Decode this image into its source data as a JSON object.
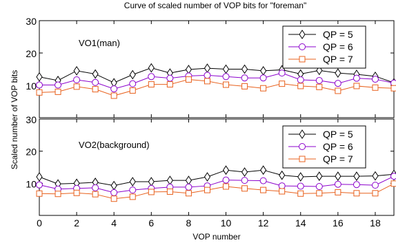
{
  "chart_data": {
    "type": "line",
    "title": "Curve of scaled number of VOP bits for \"foreman\"",
    "xlabel": "VOP number",
    "ylabel": "Scaled number of VOP bits",
    "x": [
      0,
      1,
      2,
      3,
      4,
      5,
      6,
      7,
      8,
      9,
      10,
      11,
      12,
      13,
      14,
      15,
      16,
      17,
      18,
      19
    ],
    "xlim": [
      0,
      19
    ],
    "xticks": [
      "0",
      "2",
      "4",
      "6",
      "8",
      "10",
      "12",
      "14",
      "16",
      "18"
    ],
    "grid": false,
    "legend_placement": "top-right",
    "panels": [
      {
        "label": "VO1(man)",
        "ylim": [
          0,
          30
        ],
        "yticks": [
          "10",
          "20",
          "30"
        ],
        "series": [
          {
            "name": "QP = 5",
            "color": "#000000",
            "marker": "diamond",
            "values": [
              12.6,
              11.5,
              14.5,
              13.5,
              10.8,
              13.3,
              15.4,
              13.8,
              14.9,
              15.3,
              15.0,
              15.0,
              14.5,
              14.8,
              13.5,
              14.6,
              13.8,
              13.4,
              12.8,
              10.8
            ]
          },
          {
            "name": "QP = 6",
            "color": "#8b00cc",
            "marker": "circle",
            "values": [
              10.1,
              10.1,
              11.7,
              10.9,
              8.9,
              10.5,
              12.7,
              12.2,
              12.9,
              13.1,
              12.7,
              12.3,
              12.3,
              13.8,
              11.7,
              11.5,
              10.6,
              12.2,
              11.9,
              10.7
            ]
          },
          {
            "name": "QP = 7",
            "color": "#e8601c",
            "marker": "square",
            "values": [
              7.8,
              8.0,
              9.6,
              8.8,
              6.8,
              8.4,
              10.3,
              10.3,
              11.8,
              11.3,
              10.2,
              9.7,
              9.1,
              10.5,
              9.8,
              9.5,
              8.3,
              9.8,
              9.3,
              9.1
            ]
          }
        ]
      },
      {
        "label": "VO2(background)",
        "ylim": [
          0,
          30
        ],
        "yticks": [
          "10",
          "20",
          "30"
        ],
        "series": [
          {
            "name": "QP = 5",
            "color": "#000000",
            "marker": "diamond",
            "values": [
              12.0,
              9.8,
              10.0,
              10.3,
              9.3,
              10.5,
              10.5,
              10.9,
              10.9,
              12.0,
              14.1,
              13.5,
              14.1,
              12.5,
              12.0,
              12.2,
              12.2,
              12.2,
              12.3,
              12.8
            ]
          },
          {
            "name": "QP = 6",
            "color": "#8b00cc",
            "marker": "circle",
            "values": [
              9.5,
              8.2,
              8.4,
              8.6,
              7.1,
              7.9,
              8.4,
              8.8,
              8.8,
              9.2,
              11.0,
              10.9,
              10.8,
              9.2,
              9.1,
              9.0,
              9.7,
              9.6,
              9.4,
              12.2
            ]
          },
          {
            "name": "QP = 7",
            "color": "#e8601c",
            "marker": "square",
            "values": [
              6.8,
              6.7,
              7.0,
              6.6,
              5.2,
              5.8,
              7.3,
              7.4,
              6.9,
              7.9,
              9.0,
              8.4,
              7.9,
              7.5,
              6.8,
              6.9,
              7.2,
              6.9,
              6.9,
              9.9
            ]
          }
        ]
      }
    ]
  }
}
